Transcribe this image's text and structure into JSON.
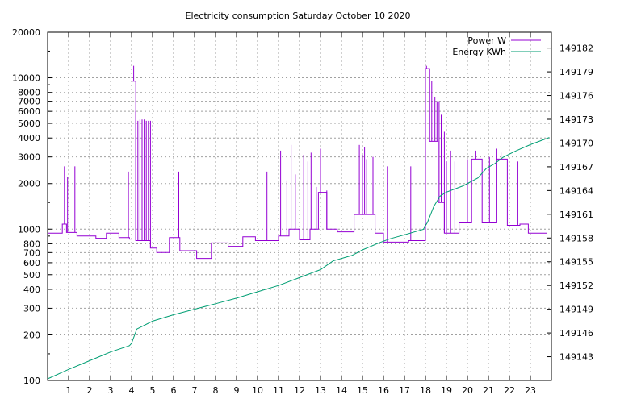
{
  "chart_data": {
    "type": "line",
    "title": "Electricity consumption Saturday October 10 2020",
    "xlabel": "",
    "ylabel": "",
    "y2label": "",
    "grid": true,
    "legend_position": "top-right",
    "x_range": [
      0,
      24
    ],
    "x_ticks": [
      1,
      2,
      3,
      4,
      5,
      6,
      7,
      8,
      9,
      10,
      11,
      12,
      13,
      14,
      15,
      16,
      17,
      18,
      19,
      20,
      21,
      22,
      23
    ],
    "y_scale": "log",
    "y_range": [
      100,
      20000
    ],
    "y_ticks": [
      100,
      200,
      300,
      400,
      500,
      600,
      700,
      800,
      1000,
      2000,
      3000,
      4000,
      5000,
      6000,
      7000,
      8000,
      10000,
      20000
    ],
    "y2_range": [
      149140,
      149184
    ],
    "y2_ticks": [
      149143,
      149146,
      149149,
      149152,
      149155,
      149158,
      149161,
      149164,
      149167,
      149170,
      149173,
      149176,
      149179,
      149182
    ],
    "series": [
      {
        "name": "Power W",
        "axis": "y",
        "color": "#9400d3",
        "points": [
          [
            0,
            940
          ],
          [
            0.7,
            940
          ],
          [
            0.7,
            1080
          ],
          [
            0.9,
            1080
          ],
          [
            0.9,
            950
          ],
          [
            1.4,
            950
          ],
          [
            1.4,
            900
          ],
          [
            2.3,
            900
          ],
          [
            2.3,
            870
          ],
          [
            2.8,
            870
          ],
          [
            2.8,
            940
          ],
          [
            3.4,
            940
          ],
          [
            3.4,
            880
          ],
          [
            3.9,
            880
          ],
          [
            3.9,
            860
          ],
          [
            4.02,
            860
          ],
          [
            4.02,
            9500
          ],
          [
            4.2,
            9500
          ],
          [
            4.2,
            840
          ],
          [
            4.9,
            840
          ],
          [
            4.9,
            750
          ],
          [
            5.2,
            750
          ],
          [
            5.2,
            700
          ],
          [
            5.8,
            700
          ],
          [
            5.8,
            880
          ],
          [
            6.3,
            880
          ],
          [
            6.3,
            720
          ],
          [
            7.1,
            720
          ],
          [
            7.1,
            640
          ],
          [
            7.8,
            640
          ],
          [
            7.8,
            810
          ],
          [
            8.6,
            810
          ],
          [
            8.6,
            770
          ],
          [
            9.3,
            770
          ],
          [
            9.3,
            890
          ],
          [
            9.9,
            890
          ],
          [
            9.9,
            840
          ],
          [
            11.0,
            840
          ],
          [
            11.0,
            900
          ],
          [
            11.5,
            900
          ],
          [
            11.5,
            1000
          ],
          [
            12.0,
            1000
          ],
          [
            12.0,
            850
          ],
          [
            12.5,
            850
          ],
          [
            12.5,
            1000
          ],
          [
            12.9,
            1000
          ],
          [
            12.9,
            1750
          ],
          [
            13.3,
            1750
          ],
          [
            13.3,
            1000
          ],
          [
            13.8,
            1000
          ],
          [
            13.8,
            960
          ],
          [
            14.6,
            960
          ],
          [
            14.6,
            1250
          ],
          [
            15.6,
            1250
          ],
          [
            15.6,
            940
          ],
          [
            16.0,
            940
          ],
          [
            16.0,
            820
          ],
          [
            17.2,
            820
          ],
          [
            17.2,
            840
          ],
          [
            18.0,
            840
          ],
          [
            18.0,
            11500
          ],
          [
            18.2,
            11500
          ],
          [
            18.2,
            3800
          ],
          [
            18.6,
            3800
          ],
          [
            18.6,
            1500
          ],
          [
            18.9,
            1500
          ],
          [
            18.9,
            940
          ],
          [
            19.6,
            940
          ],
          [
            19.6,
            1100
          ],
          [
            20.2,
            1100
          ],
          [
            20.2,
            2900
          ],
          [
            20.7,
            2900
          ],
          [
            20.7,
            1100
          ],
          [
            21.4,
            1100
          ],
          [
            21.4,
            2900
          ],
          [
            21.9,
            2900
          ],
          [
            21.9,
            1060
          ],
          [
            22.5,
            1060
          ],
          [
            22.5,
            1080
          ],
          [
            22.9,
            1080
          ],
          [
            22.9,
            940
          ],
          [
            23.8,
            940
          ]
        ],
        "spikes": [
          [
            0.8,
            2600
          ],
          [
            0.95,
            2200
          ],
          [
            1.3,
            2600
          ],
          [
            3.85,
            2400
          ],
          [
            4.1,
            12000
          ],
          [
            4.2,
            6000
          ],
          [
            4.3,
            5200
          ],
          [
            4.4,
            5300
          ],
          [
            4.5,
            5300
          ],
          [
            4.6,
            5300
          ],
          [
            4.7,
            5200
          ],
          [
            4.8,
            5200
          ],
          [
            4.9,
            5200
          ],
          [
            6.25,
            2400
          ],
          [
            10.45,
            2400
          ],
          [
            11.1,
            3300
          ],
          [
            11.4,
            2100
          ],
          [
            11.6,
            3600
          ],
          [
            11.8,
            2300
          ],
          [
            12.2,
            3100
          ],
          [
            12.4,
            2800
          ],
          [
            12.55,
            3200
          ],
          [
            12.8,
            1900
          ],
          [
            13.0,
            3400
          ],
          [
            13.3,
            1800
          ],
          [
            14.85,
            3600
          ],
          [
            15.0,
            3100
          ],
          [
            15.1,
            3500
          ],
          [
            15.2,
            2900
          ],
          [
            15.5,
            3000
          ],
          [
            16.2,
            2600
          ],
          [
            17.3,
            2600
          ],
          [
            18.05,
            12000
          ],
          [
            18.3,
            9500
          ],
          [
            18.45,
            7500
          ],
          [
            18.55,
            7000
          ],
          [
            18.65,
            7000
          ],
          [
            18.75,
            5700
          ],
          [
            18.9,
            4400
          ],
          [
            19.0,
            2800
          ],
          [
            19.2,
            3300
          ],
          [
            19.4,
            2800
          ],
          [
            20.0,
            2900
          ],
          [
            20.4,
            3300
          ],
          [
            21.05,
            3000
          ],
          [
            21.4,
            3400
          ],
          [
            21.6,
            3200
          ],
          [
            22.4,
            2800
          ]
        ]
      },
      {
        "name": "Energy KWh",
        "axis": "y2",
        "color": "#009e73",
        "points": [
          [
            0,
            149140.2
          ],
          [
            1,
            149141.4
          ],
          [
            2,
            149142.5
          ],
          [
            3,
            149143.6
          ],
          [
            3.9,
            149144.4
          ],
          [
            4.0,
            149144.7
          ],
          [
            4.25,
            149146.5
          ],
          [
            5.0,
            149147.5
          ],
          [
            6.0,
            149148.3
          ],
          [
            7.0,
            149149.0
          ],
          [
            8.0,
            149149.7
          ],
          [
            9.0,
            149150.4
          ],
          [
            10.0,
            149151.2
          ],
          [
            11.0,
            149152.0
          ],
          [
            12.0,
            149153.0
          ],
          [
            13.0,
            149154.0
          ],
          [
            13.6,
            149155.1
          ],
          [
            14.5,
            149155.8
          ],
          [
            15.0,
            149156.5
          ],
          [
            15.8,
            149157.4
          ],
          [
            16.3,
            149157.9
          ],
          [
            17.0,
            149158.4
          ],
          [
            17.9,
            149159.1
          ],
          [
            18.1,
            149160.0
          ],
          [
            18.4,
            149162.0
          ],
          [
            18.7,
            149163.3
          ],
          [
            19.0,
            149163.8
          ],
          [
            19.8,
            149164.6
          ],
          [
            20.5,
            149165.6
          ],
          [
            20.9,
            149166.8
          ],
          [
            21.3,
            149167.4
          ],
          [
            21.7,
            149168.2
          ],
          [
            22.3,
            149169.0
          ],
          [
            23.0,
            149169.8
          ],
          [
            23.9,
            149170.7
          ]
        ]
      }
    ]
  }
}
